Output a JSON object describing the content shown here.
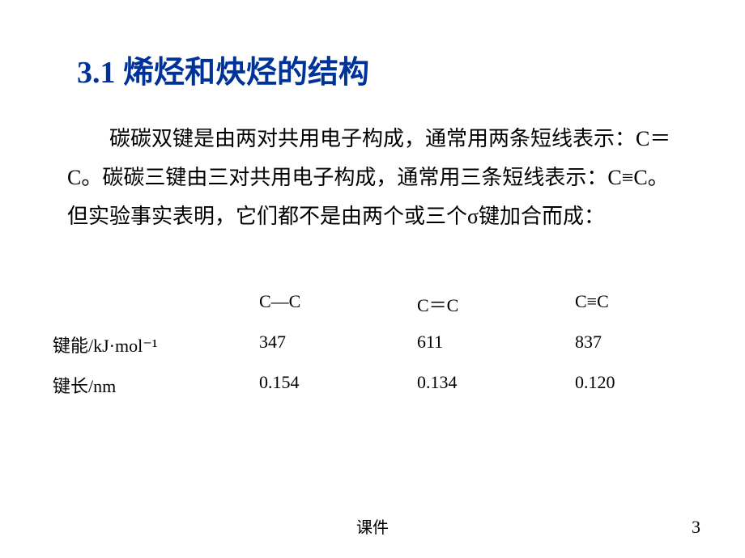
{
  "title": "3.1 烯烃和炔烃的结构",
  "paragraph": "碳碳双键是由两对共用电子构成，通常用两条短线表示：C＝C。碳碳三键由三对共用电子构成，通常用三条短线表示：C≡C。但实验事实表明，它们都不是由两个或三个σ键加合而成：",
  "table": {
    "header": {
      "label": "",
      "col1": "C—C",
      "col2": "C＝C",
      "col3": "C≡C"
    },
    "row1": {
      "label": "键能/kJ·mol⁻¹",
      "col1": "347",
      "col2": "611",
      "col3": "837"
    },
    "row2": {
      "label": "键长/nm",
      "col1": "0.154",
      "col2": "0.134",
      "col3": "0.120"
    }
  },
  "footer": "课件",
  "page_number": "3"
}
